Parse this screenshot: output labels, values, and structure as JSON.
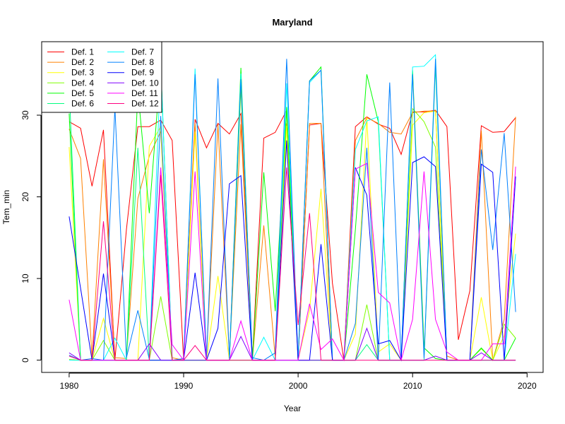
{
  "chart_data": {
    "type": "line",
    "title": "Maryland",
    "xlabel": "Year",
    "ylabel": "Tem_min",
    "xlim": [
      1977.6,
      2021.4
    ],
    "ylim": [
      -1.5,
      39.0
    ],
    "x_ticks": [
      1980,
      1990,
      2000,
      2010,
      2020
    ],
    "y_ticks": [
      0,
      10,
      20,
      30
    ],
    "legend_position": "top-left",
    "x": [
      1980,
      1981,
      1982,
      1983,
      1984,
      1985,
      1986,
      1987,
      1988,
      1989,
      1990,
      1991,
      1992,
      1993,
      1994,
      1995,
      1996,
      1997,
      1998,
      1999,
      2000,
      2001,
      2002,
      2003,
      2004,
      2005,
      2006,
      2007,
      2008,
      2009,
      2010,
      2011,
      2012,
      2013,
      2014,
      2015,
      2016,
      2017,
      2018,
      2019
    ],
    "series": [
      {
        "name": "Def. 1",
        "color": "#FF0000",
        "values": [
          29.2,
          28.4,
          21.3,
          28.2,
          0,
          16.0,
          28.6,
          28.6,
          29.4,
          26.9,
          0,
          29.5,
          26.0,
          29.0,
          27.7,
          30.2,
          0,
          27.2,
          27.9,
          30.6,
          0,
          28.8,
          29.0,
          9.4,
          0,
          28.6,
          29.8,
          28.9,
          28.4,
          25.2,
          30.4,
          30.4,
          30.6,
          28.6,
          2.5,
          8.5,
          28.7,
          27.9,
          28.0,
          29.7
        ]
      },
      {
        "name": "Def. 2",
        "color": "#FF8000",
        "values": [
          28.3,
          24.7,
          0.3,
          24.6,
          0.3,
          0.2,
          19.8,
          25.0,
          28.0,
          0.3,
          0,
          29.0,
          0.3,
          28.9,
          0.3,
          28.9,
          0,
          16.5,
          0.3,
          29.0,
          0,
          29.0,
          29.0,
          0,
          0,
          26.9,
          29.7,
          29.0,
          27.9,
          27.7,
          30.3,
          30.5,
          30.5,
          0.5,
          0,
          0,
          28.1,
          0,
          5.0,
          29.8
        ]
      },
      {
        "name": "Def. 3",
        "color": "#FFFF00",
        "values": [
          26.1,
          0,
          0,
          5.1,
          0,
          0,
          0,
          26.2,
          28.6,
          0,
          0,
          28.0,
          0,
          10.3,
          0,
          0,
          0,
          0,
          0,
          28.7,
          0,
          6.1,
          21.0,
          0,
          0,
          3.2,
          29.8,
          1.0,
          2.0,
          0,
          28.8,
          30.3,
          30.5,
          0,
          0,
          0,
          7.7,
          0,
          3.0,
          15.5
        ]
      },
      {
        "name": "Def. 4",
        "color": "#80FF00",
        "values": [
          0.1,
          0,
          0,
          2.4,
          0,
          0,
          0,
          0,
          7.8,
          0,
          0,
          0,
          0,
          0,
          0,
          33.3,
          0,
          0,
          0,
          30.8,
          0,
          0,
          0,
          0,
          0,
          0,
          6.8,
          0,
          0,
          0,
          30.8,
          29.2,
          26.1,
          0,
          0,
          0,
          1.4,
          0,
          4.4,
          2.7
        ]
      },
      {
        "name": "Def. 5",
        "color": "#00FF00",
        "values": [
          30.2,
          0,
          0,
          0,
          0,
          0,
          33.0,
          18.0,
          36.2,
          0,
          0,
          0,
          0,
          0,
          0,
          35.8,
          0,
          23.0,
          6.0,
          31.0,
          0,
          34.2,
          35.9,
          0,
          0,
          16.0,
          35.0,
          29.2,
          0,
          0,
          35.5,
          1.5,
          0.2,
          0,
          0,
          0,
          1.5,
          0,
          0,
          2.7
        ]
      },
      {
        "name": "Def. 6",
        "color": "#00FF80",
        "values": [
          33.5,
          0,
          0,
          0,
          0,
          0,
          26.0,
          0,
          0,
          0,
          0,
          0,
          0,
          0,
          0,
          0,
          0,
          0,
          0,
          0,
          0,
          0,
          0,
          0,
          0,
          0,
          1.9,
          0,
          0,
          0,
          0,
          0,
          36.0,
          0,
          0,
          0,
          0,
          0,
          0,
          0
        ]
      },
      {
        "name": "Def. 7",
        "color": "#00FFFF",
        "values": [
          0,
          0,
          0,
          0,
          2.7,
          0,
          0,
          0,
          36.4,
          0,
          0,
          35.7,
          0,
          0,
          0,
          35.1,
          0,
          2.8,
          0,
          33.9,
          0,
          34.0,
          35.5,
          0,
          0,
          25.8,
          29.3,
          29.8,
          0,
          0,
          35.9,
          36.0,
          37.4,
          0,
          0,
          0,
          0,
          0,
          0,
          13.0
        ]
      },
      {
        "name": "Def. 8",
        "color": "#0080FF",
        "values": [
          0.6,
          0,
          0.2,
          0,
          30.9,
          0.3,
          6.1,
          0.1,
          29.9,
          0,
          0.2,
          35.0,
          0.2,
          34.5,
          0.2,
          34.4,
          0.3,
          0,
          0.9,
          36.9,
          0,
          34.2,
          35.5,
          0,
          0,
          4.5,
          26.0,
          0,
          34.0,
          0,
          35.0,
          0.2,
          36.9,
          0,
          0,
          0,
          25.8,
          13.5,
          27.8,
          5.9
        ]
      },
      {
        "name": "Def. 9",
        "color": "#0000FF",
        "values": [
          17.6,
          8.8,
          0,
          10.6,
          0,
          0,
          0,
          0,
          0,
          0,
          0,
          10.7,
          0,
          3.9,
          21.6,
          22.6,
          0,
          0,
          0,
          26.9,
          0,
          0,
          14.2,
          0,
          0,
          23.6,
          20.2,
          2.0,
          2.4,
          0,
          24.2,
          24.9,
          23.7,
          0,
          0,
          0,
          24.0,
          23.0,
          0,
          22.5
        ]
      },
      {
        "name": "Def. 10",
        "color": "#8000FF",
        "values": [
          0.9,
          0,
          0,
          0,
          0,
          0,
          0,
          2.0,
          0,
          0,
          0,
          0,
          0,
          0,
          0,
          2.9,
          0,
          0,
          0,
          0,
          0,
          0,
          0,
          0,
          0,
          0,
          3.9,
          0,
          0,
          0,
          0,
          0,
          0.5,
          0,
          0,
          0,
          0.9,
          0,
          0,
          0
        ]
      },
      {
        "name": "Def. 11",
        "color": "#FF00FF",
        "values": [
          7.4,
          0,
          0,
          0,
          0,
          0,
          0,
          0,
          23.6,
          1.9,
          0,
          23.1,
          0,
          0,
          0,
          4.8,
          0,
          0,
          0,
          0,
          0,
          6.9,
          1.3,
          2.6,
          0,
          23.4,
          24.1,
          8.3,
          7.0,
          0,
          5.0,
          23.1,
          5.0,
          1.0,
          0,
          0,
          0,
          2.0,
          2.0,
          23.7
        ]
      },
      {
        "name": "Def. 12",
        "color": "#FF0080",
        "values": [
          0.5,
          0,
          0,
          17.0,
          0,
          0,
          0,
          0,
          22.7,
          0,
          0,
          1.8,
          0,
          0,
          0,
          0,
          0,
          0,
          0,
          23.6,
          4.3,
          18.0,
          0,
          0,
          0,
          0,
          0,
          0,
          0,
          0,
          0,
          0,
          0,
          0,
          0,
          0,
          0,
          0,
          0,
          0
        ]
      }
    ]
  }
}
